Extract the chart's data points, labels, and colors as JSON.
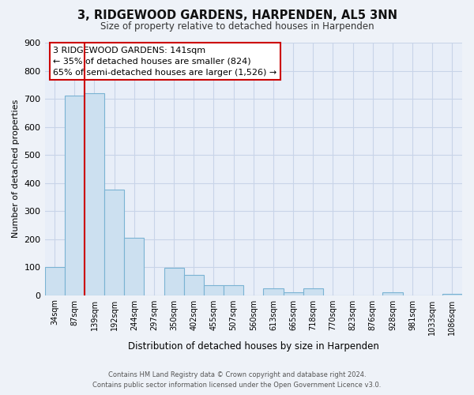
{
  "title": "3, RIDGEWOOD GARDENS, HARPENDEN, AL5 3NN",
  "subtitle": "Size of property relative to detached houses in Harpenden",
  "xlabel": "Distribution of detached houses by size in Harpenden",
  "ylabel": "Number of detached properties",
  "categories": [
    "34sqm",
    "87sqm",
    "139sqm",
    "192sqm",
    "244sqm",
    "297sqm",
    "350sqm",
    "402sqm",
    "455sqm",
    "507sqm",
    "560sqm",
    "613sqm",
    "665sqm",
    "718sqm",
    "770sqm",
    "823sqm",
    "876sqm",
    "928sqm",
    "981sqm",
    "1033sqm",
    "1086sqm"
  ],
  "values": [
    100,
    710,
    720,
    375,
    205,
    0,
    98,
    72,
    35,
    35,
    0,
    25,
    10,
    25,
    0,
    0,
    0,
    10,
    0,
    0,
    5
  ],
  "bar_color": "#cce0f0",
  "bar_edge_color": "#7ab3d3",
  "marker_index": 2,
  "marker_color": "#cc0000",
  "annotation_line1": "3 RIDGEWOOD GARDENS: 141sqm",
  "annotation_line2": "← 35% of detached houses are smaller (824)",
  "annotation_line3": "65% of semi-detached houses are larger (1,526) →",
  "annotation_box_color": "#ffffff",
  "annotation_box_edge": "#cc0000",
  "ylim": [
    0,
    900
  ],
  "yticks": [
    0,
    100,
    200,
    300,
    400,
    500,
    600,
    700,
    800,
    900
  ],
  "footer_line1": "Contains HM Land Registry data © Crown copyright and database right 2024.",
  "footer_line2": "Contains public sector information licensed under the Open Government Licence v3.0.",
  "bg_color": "#eef2f8",
  "plot_bg_color": "#e8eef8",
  "grid_color": "#c8d4e8"
}
